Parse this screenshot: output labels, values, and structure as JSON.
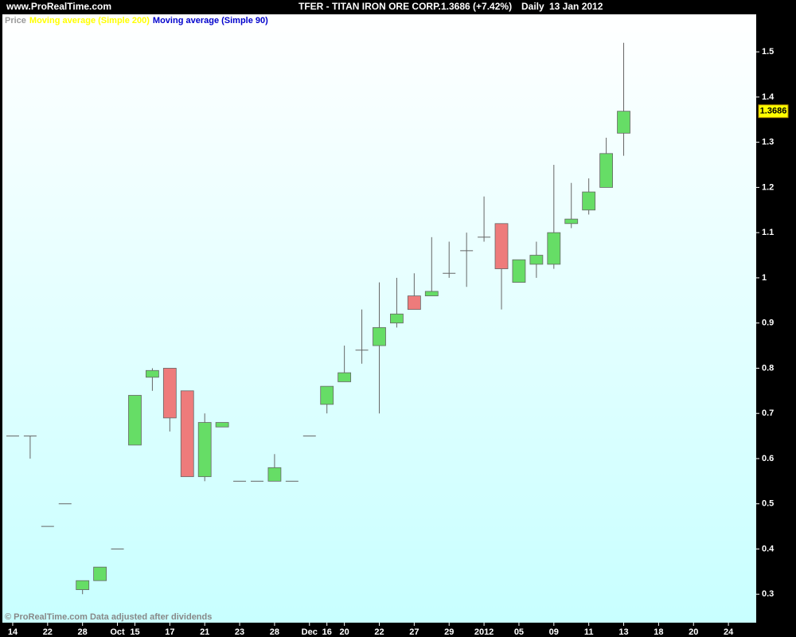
{
  "header": {
    "site": "www.ProRealTime.com",
    "ticker": "TFER - TITAN IRON ORE CORP.",
    "quote": "1.3686 (+7.42%)",
    "period": "Daily",
    "date": "13 Jan 2012"
  },
  "footer": "© ProRealTime.com  Data adjusted after dividends",
  "chart_data": {
    "type": "candlestick",
    "legend": [
      {
        "name": "Price",
        "color": "#9a9a9a"
      },
      {
        "name": "Moving average (Simple 200)",
        "color": "#ffff00"
      },
      {
        "name": "Moving average (Simple 90)",
        "color": "#0000cc"
      }
    ],
    "up_color": "#66dd66",
    "down_color": "#ee7b7b",
    "categories": [
      "14",
      null,
      "22",
      null,
      "28",
      null,
      "Oct",
      "15",
      null,
      "17",
      null,
      "21",
      null,
      "23",
      null,
      "28",
      null,
      "Dec",
      "16",
      "20",
      null,
      "22",
      null,
      "27",
      null,
      "29",
      null,
      "2012",
      null,
      "05",
      null,
      "09",
      null,
      "11",
      null,
      "13",
      null,
      "18",
      null,
      "20",
      null,
      "24",
      null
    ],
    "open": [
      0.65,
      0.65,
      0.45,
      0.5,
      0.31,
      0.33,
      0.4,
      0.63,
      0.78,
      0.8,
      0.75,
      0.56,
      0.67,
      0.55,
      0.55,
      0.55,
      0.55,
      0.65,
      0.72,
      0.77,
      0.84,
      0.85,
      0.9,
      0.96,
      0.96,
      1.01,
      1.06,
      1.09,
      1.12,
      0.99,
      1.03,
      1.03,
      1.12,
      1.15,
      1.2,
      1.32,
      null,
      null,
      null,
      null,
      null,
      null,
      null
    ],
    "high": [
      0.65,
      0.65,
      0.45,
      0.5,
      0.33,
      0.36,
      0.4,
      0.74,
      0.8,
      0.8,
      0.75,
      0.7,
      0.68,
      0.55,
      0.55,
      0.61,
      0.55,
      0.65,
      0.76,
      0.85,
      0.93,
      0.99,
      1.0,
      1.01,
      1.09,
      1.08,
      1.1,
      1.18,
      1.12,
      1.04,
      1.08,
      1.25,
      1.21,
      1.22,
      1.31,
      1.52,
      null,
      null,
      null,
      null,
      null,
      null,
      null
    ],
    "low": [
      0.65,
      0.6,
      0.45,
      0.5,
      0.3,
      0.33,
      0.4,
      0.63,
      0.75,
      0.66,
      0.56,
      0.55,
      0.67,
      0.55,
      0.55,
      0.55,
      0.55,
      0.65,
      0.7,
      0.77,
      0.81,
      0.7,
      0.89,
      0.93,
      0.96,
      1.0,
      0.98,
      1.08,
      0.93,
      0.99,
      1.0,
      1.02,
      1.11,
      1.14,
      1.2,
      1.27,
      null,
      null,
      null,
      null,
      null,
      null,
      null
    ],
    "close": [
      0.65,
      0.65,
      0.45,
      0.5,
      0.33,
      0.36,
      0.4,
      0.74,
      0.795,
      0.69,
      0.56,
      0.68,
      0.68,
      0.55,
      0.55,
      0.58,
      0.55,
      0.65,
      0.76,
      0.79,
      0.84,
      0.89,
      0.92,
      0.93,
      0.97,
      1.01,
      1.06,
      1.09,
      1.02,
      1.04,
      1.05,
      1.1,
      1.13,
      1.19,
      1.275,
      1.3686,
      null,
      null,
      null,
      null,
      null,
      null,
      null
    ],
    "last_price": 1.3686,
    "ylim": [
      0.237,
      1.583
    ],
    "yticks": [
      0.3,
      0.4,
      0.5,
      0.6,
      0.7,
      0.8,
      0.9,
      1,
      1.1,
      1.2,
      1.3,
      1.4,
      1.5
    ]
  }
}
